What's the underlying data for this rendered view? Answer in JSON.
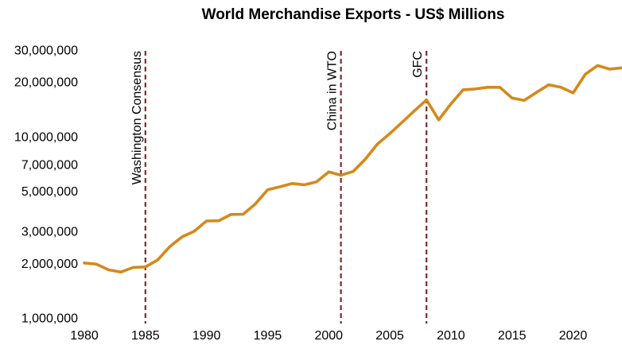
{
  "chart_data": {
    "type": "line",
    "title": "World Merchandise Exports - US$ Millions",
    "xlabel": "",
    "ylabel": "",
    "yscale": "log",
    "xlim": [
      1980,
      2024
    ],
    "ylim": [
      1000000,
      30000000
    ],
    "grid": false,
    "x_ticks": [
      {
        "value": 1980,
        "label": "1980"
      },
      {
        "value": 1985,
        "label": "1985"
      },
      {
        "value": 1990,
        "label": "1990"
      },
      {
        "value": 1995,
        "label": "1995"
      },
      {
        "value": 2000,
        "label": "2000"
      },
      {
        "value": 2005,
        "label": "2005"
      },
      {
        "value": 2010,
        "label": "2010"
      },
      {
        "value": 2015,
        "label": "2015"
      },
      {
        "value": 2020,
        "label": "2020"
      }
    ],
    "y_ticks": [
      {
        "value": 1000000,
        "label": "1,000,000"
      },
      {
        "value": 2000000,
        "label": "2,000,000"
      },
      {
        "value": 3000000,
        "label": "3,000,000"
      },
      {
        "value": 5000000,
        "label": "5,000,000"
      },
      {
        "value": 7000000,
        "label": "7,000,000"
      },
      {
        "value": 10000000,
        "label": "10,000,000"
      },
      {
        "value": 20000000,
        "label": "20,000,000"
      },
      {
        "value": 30000000,
        "label": "30,000,000"
      }
    ],
    "series": [
      {
        "name": "World Merchandise Exports",
        "color": "#D4891A",
        "x": [
          1980,
          1981,
          1982,
          1983,
          1984,
          1985,
          1986,
          1987,
          1988,
          1989,
          1990,
          1991,
          1992,
          1993,
          1994,
          1995,
          1996,
          1997,
          1998,
          1999,
          2000,
          2001,
          2002,
          2003,
          2004,
          2005,
          2006,
          2007,
          2008,
          2009,
          2010,
          2011,
          2012,
          2013,
          2014,
          2015,
          2016,
          2017,
          2018,
          2019,
          2020,
          2021,
          2022,
          2023,
          2024
        ],
        "values": [
          2030000,
          2000000,
          1860000,
          1810000,
          1920000,
          1930000,
          2110000,
          2500000,
          2830000,
          3040000,
          3460000,
          3470000,
          3760000,
          3770000,
          4300000,
          5140000,
          5340000,
          5570000,
          5480000,
          5690000,
          6450000,
          6190000,
          6490000,
          7590000,
          9210000,
          10500000,
          12100000,
          14000000,
          16100000,
          12500000,
          15300000,
          18300000,
          18500000,
          18900000,
          18900000,
          16500000,
          16000000,
          17700000,
          19500000,
          18900000,
          17600000,
          22300000,
          24900000,
          23800000,
          24200000
        ]
      }
    ],
    "annotations": [
      {
        "x": 1985,
        "label": "Washington Consensus",
        "color": "#7B2D2D",
        "style": "dashed"
      },
      {
        "x": 2001,
        "label": "China in WTO",
        "color": "#7B2D2D",
        "style": "dashed"
      },
      {
        "x": 2008,
        "label": "GFC",
        "color": "#7B2D2D",
        "style": "dashed"
      }
    ]
  }
}
